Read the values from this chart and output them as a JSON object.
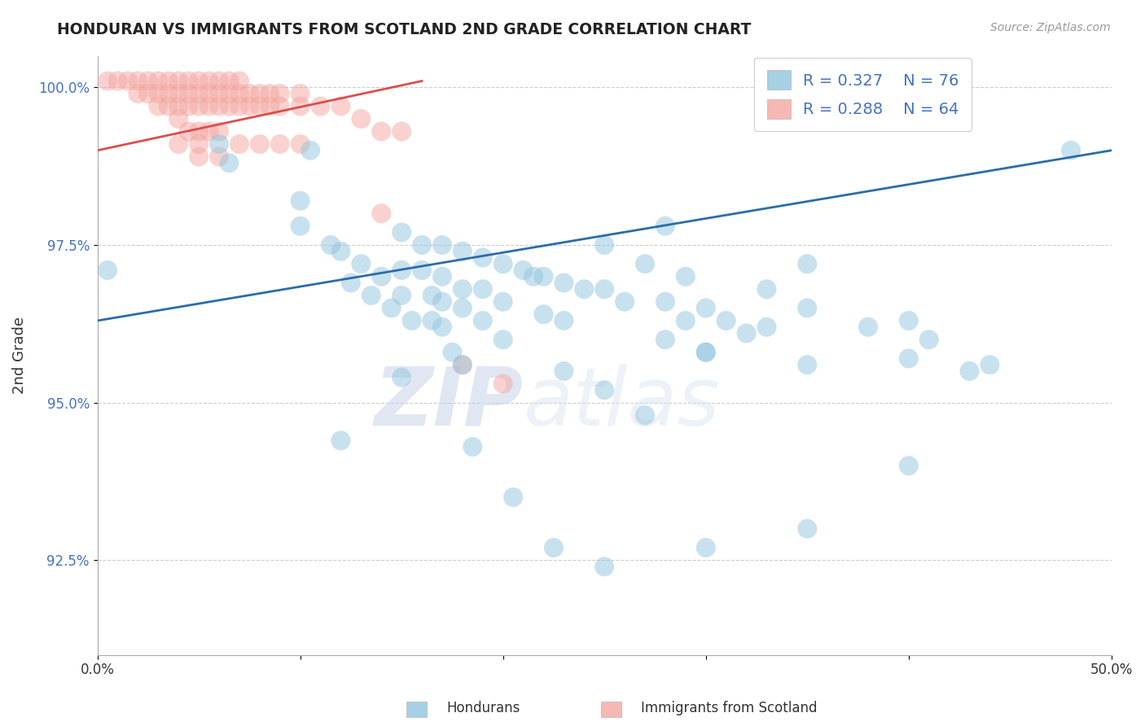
{
  "title": "HONDURAN VS IMMIGRANTS FROM SCOTLAND 2ND GRADE CORRELATION CHART",
  "source": "Source: ZipAtlas.com",
  "ylabel": "2nd Grade",
  "xlim": [
    0.0,
    0.5
  ],
  "ylim": [
    0.91,
    1.005
  ],
  "yticks": [
    0.925,
    0.95,
    0.975,
    1.0
  ],
  "ytick_labels": [
    "92.5%",
    "95.0%",
    "97.5%",
    "100.0%"
  ],
  "blue_color": "#92c5de",
  "pink_color": "#f4a6a0",
  "blue_line_color": "#2b6caa",
  "pink_line_color": "#d94f4f",
  "watermark_zip": "ZIP",
  "watermark_atlas": "atlas",
  "blue_dots": [
    [
      0.005,
      0.971
    ],
    [
      0.06,
      0.991
    ],
    [
      0.065,
      0.988
    ],
    [
      0.1,
      0.982
    ],
    [
      0.105,
      0.99
    ],
    [
      0.115,
      0.975
    ],
    [
      0.12,
      0.974
    ],
    [
      0.125,
      0.969
    ],
    [
      0.13,
      0.972
    ],
    [
      0.135,
      0.967
    ],
    [
      0.14,
      0.97
    ],
    [
      0.145,
      0.965
    ],
    [
      0.15,
      0.977
    ],
    [
      0.15,
      0.971
    ],
    [
      0.15,
      0.967
    ],
    [
      0.155,
      0.963
    ],
    [
      0.16,
      0.975
    ],
    [
      0.16,
      0.971
    ],
    [
      0.165,
      0.967
    ],
    [
      0.165,
      0.963
    ],
    [
      0.17,
      0.975
    ],
    [
      0.17,
      0.97
    ],
    [
      0.17,
      0.966
    ],
    [
      0.17,
      0.962
    ],
    [
      0.175,
      0.958
    ],
    [
      0.18,
      0.974
    ],
    [
      0.18,
      0.968
    ],
    [
      0.18,
      0.965
    ],
    [
      0.185,
      0.943
    ],
    [
      0.19,
      0.973
    ],
    [
      0.19,
      0.968
    ],
    [
      0.19,
      0.963
    ],
    [
      0.2,
      0.972
    ],
    [
      0.2,
      0.966
    ],
    [
      0.2,
      0.96
    ],
    [
      0.205,
      0.935
    ],
    [
      0.21,
      0.971
    ],
    [
      0.215,
      0.97
    ],
    [
      0.22,
      0.97
    ],
    [
      0.22,
      0.964
    ],
    [
      0.225,
      0.927
    ],
    [
      0.23,
      0.969
    ],
    [
      0.23,
      0.963
    ],
    [
      0.23,
      0.955
    ],
    [
      0.24,
      0.968
    ],
    [
      0.25,
      0.975
    ],
    [
      0.25,
      0.968
    ],
    [
      0.25,
      0.952
    ],
    [
      0.26,
      0.966
    ],
    [
      0.27,
      0.972
    ],
    [
      0.27,
      0.948
    ],
    [
      0.28,
      0.978
    ],
    [
      0.28,
      0.966
    ],
    [
      0.28,
      0.96
    ],
    [
      0.29,
      0.97
    ],
    [
      0.29,
      0.963
    ],
    [
      0.3,
      0.965
    ],
    [
      0.3,
      0.958
    ],
    [
      0.31,
      0.963
    ],
    [
      0.32,
      0.961
    ],
    [
      0.33,
      0.968
    ],
    [
      0.33,
      0.962
    ],
    [
      0.35,
      0.972
    ],
    [
      0.35,
      0.965
    ],
    [
      0.35,
      0.93
    ],
    [
      0.38,
      0.962
    ],
    [
      0.4,
      0.963
    ],
    [
      0.4,
      0.957
    ],
    [
      0.4,
      0.94
    ],
    [
      0.41,
      0.96
    ],
    [
      0.43,
      0.955
    ],
    [
      0.44,
      0.956
    ],
    [
      0.1,
      0.978
    ],
    [
      0.3,
      0.958
    ],
    [
      0.48,
      0.99
    ],
    [
      0.12,
      0.944
    ],
    [
      0.15,
      0.954
    ],
    [
      0.18,
      0.956
    ],
    [
      0.25,
      0.924
    ],
    [
      0.3,
      0.927
    ],
    [
      0.35,
      0.956
    ]
  ],
  "pink_dots": [
    [
      0.005,
      1.001
    ],
    [
      0.01,
      1.001
    ],
    [
      0.015,
      1.001
    ],
    [
      0.02,
      1.001
    ],
    [
      0.02,
      0.999
    ],
    [
      0.025,
      1.001
    ],
    [
      0.025,
      0.999
    ],
    [
      0.03,
      1.001
    ],
    [
      0.03,
      0.999
    ],
    [
      0.03,
      0.997
    ],
    [
      0.035,
      1.001
    ],
    [
      0.035,
      0.999
    ],
    [
      0.035,
      0.997
    ],
    [
      0.04,
      1.001
    ],
    [
      0.04,
      0.999
    ],
    [
      0.04,
      0.997
    ],
    [
      0.04,
      0.995
    ],
    [
      0.045,
      1.001
    ],
    [
      0.045,
      0.999
    ],
    [
      0.045,
      0.997
    ],
    [
      0.045,
      0.993
    ],
    [
      0.05,
      1.001
    ],
    [
      0.05,
      0.999
    ],
    [
      0.05,
      0.997
    ],
    [
      0.05,
      0.993
    ],
    [
      0.05,
      0.991
    ],
    [
      0.055,
      1.001
    ],
    [
      0.055,
      0.999
    ],
    [
      0.055,
      0.997
    ],
    [
      0.055,
      0.993
    ],
    [
      0.06,
      1.001
    ],
    [
      0.06,
      0.999
    ],
    [
      0.06,
      0.997
    ],
    [
      0.06,
      0.993
    ],
    [
      0.065,
      1.001
    ],
    [
      0.065,
      0.999
    ],
    [
      0.065,
      0.997
    ],
    [
      0.07,
      1.001
    ],
    [
      0.07,
      0.999
    ],
    [
      0.07,
      0.997
    ],
    [
      0.075,
      0.999
    ],
    [
      0.075,
      0.997
    ],
    [
      0.08,
      0.999
    ],
    [
      0.08,
      0.997
    ],
    [
      0.085,
      0.999
    ],
    [
      0.085,
      0.997
    ],
    [
      0.09,
      0.999
    ],
    [
      0.09,
      0.997
    ],
    [
      0.1,
      0.999
    ],
    [
      0.1,
      0.997
    ],
    [
      0.11,
      0.997
    ],
    [
      0.12,
      0.997
    ],
    [
      0.13,
      0.995
    ],
    [
      0.14,
      0.993
    ],
    [
      0.15,
      0.993
    ],
    [
      0.1,
      0.991
    ],
    [
      0.07,
      0.991
    ],
    [
      0.08,
      0.991
    ],
    [
      0.09,
      0.991
    ],
    [
      0.04,
      0.991
    ],
    [
      0.06,
      0.989
    ],
    [
      0.05,
      0.989
    ],
    [
      0.14,
      0.98
    ],
    [
      0.18,
      0.956
    ],
    [
      0.2,
      0.953
    ]
  ],
  "blue_line": {
    "x0": 0.0,
    "y0": 0.963,
    "x1": 0.5,
    "y1": 0.99
  },
  "pink_line": {
    "x0": 0.0,
    "y0": 0.99,
    "x1": 0.16,
    "y1": 1.001
  },
  "footer_labels": [
    "Hondurans",
    "Immigrants from Scotland"
  ],
  "grid_color": "#cccccc",
  "background_color": "#ffffff"
}
